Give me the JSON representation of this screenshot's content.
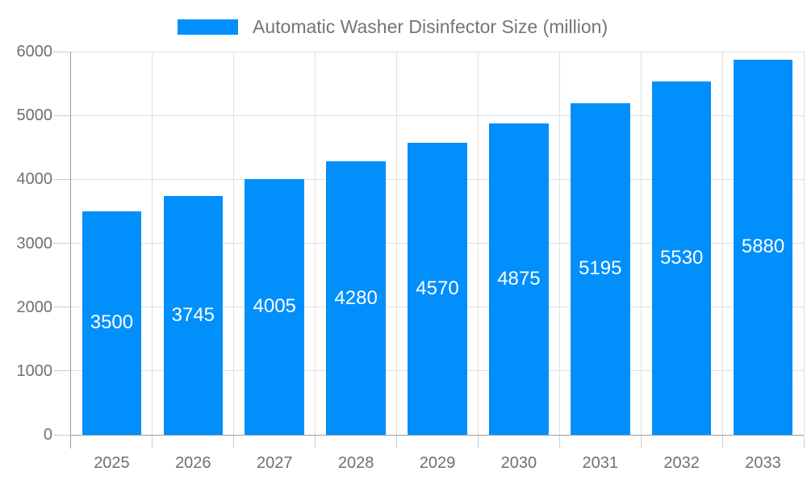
{
  "chart_data": {
    "type": "bar",
    "title": "Automatic Washer Disinfector Size (million)",
    "legend": {
      "label": "Automatic Washer Disinfector Size (million)",
      "position": "top-center",
      "marker": "rectangle"
    },
    "categories": [
      "2025",
      "2026",
      "2027",
      "2028",
      "2029",
      "2030",
      "2031",
      "2032",
      "2033"
    ],
    "values": [
      3500,
      3745,
      4005,
      4280,
      4570,
      4875,
      5195,
      5530,
      5880
    ],
    "value_labels_shown": true,
    "value_label_position": "inside-center",
    "xlabel": "",
    "ylabel": "",
    "ylim": [
      0,
      6000
    ],
    "yticks": [
      0,
      1000,
      2000,
      3000,
      4000,
      5000,
      6000
    ],
    "grid": "both",
    "colors": {
      "bar": "#008FFB",
      "grid": "#e0e0e0",
      "axis": "#9e9e9e",
      "tick": "#cccccc",
      "axis_label": "#707070",
      "legend_text": "#757575",
      "value_label": "#ffffff",
      "background": "#ffffff"
    }
  }
}
